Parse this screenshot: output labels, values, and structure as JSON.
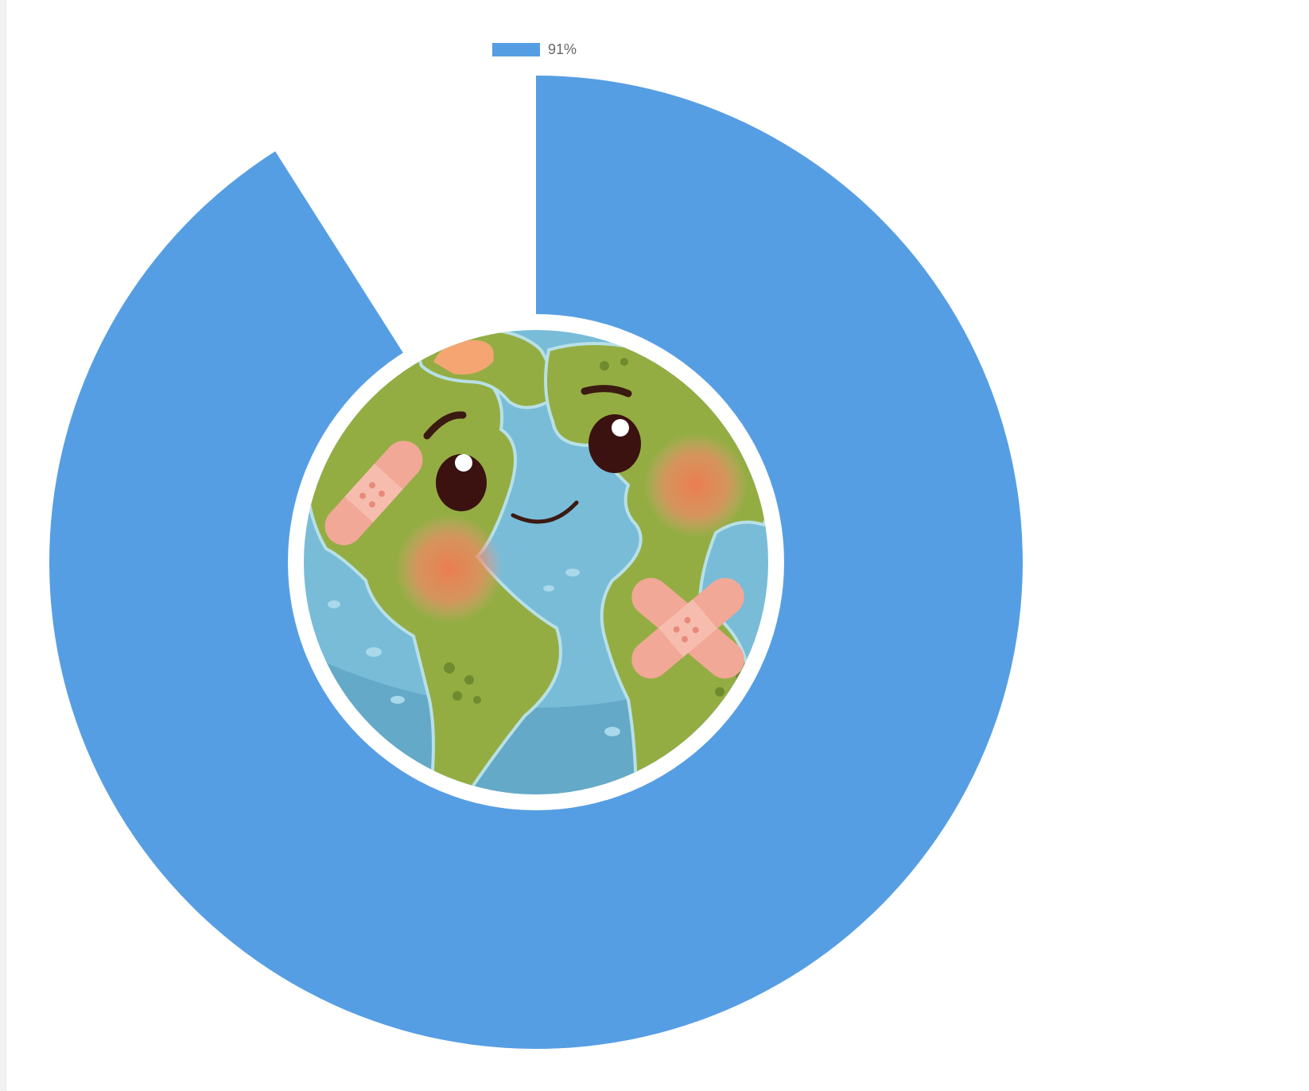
{
  "chart_data": {
    "type": "pie",
    "variant": "donut",
    "series": [
      {
        "name": "91%",
        "value": 91,
        "color": "#569EE3"
      }
    ],
    "max": 100,
    "legend": {
      "placement": "top-center"
    },
    "center_image": "earth-cartoon-with-bandages"
  },
  "colors": {
    "background": "#ffffff",
    "ring": "#569EE3"
  }
}
